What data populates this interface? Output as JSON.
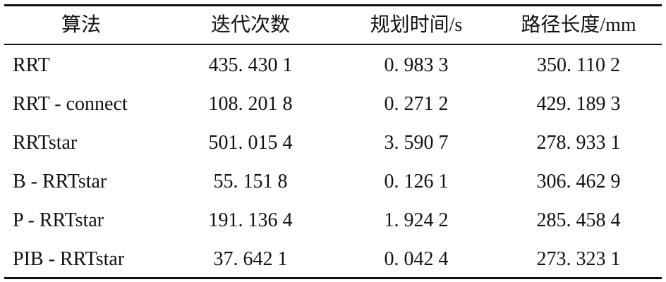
{
  "table": {
    "header": [
      "算法",
      "迭代次数",
      "规划时间/s",
      "路径长度/mm"
    ],
    "rows": [
      [
        "RRT",
        "435. 430 1",
        "0. 983 3",
        "350. 110 2"
      ],
      [
        "RRT - connect",
        "108. 201 8",
        "0. 271 2",
        "429. 189 3"
      ],
      [
        "RRTstar",
        "501. 015 4",
        "3. 590 7",
        "278. 933 1"
      ],
      [
        "B - RRTstar",
        "55. 151 8",
        "0. 126 1",
        "306. 462 9"
      ],
      [
        "P - RRTstar",
        "191. 136 4",
        "1. 924 2",
        "285. 458 4"
      ],
      [
        "PIB - RRTstar",
        "37. 642 1",
        "0. 042 4",
        "273. 323 1"
      ]
    ]
  }
}
